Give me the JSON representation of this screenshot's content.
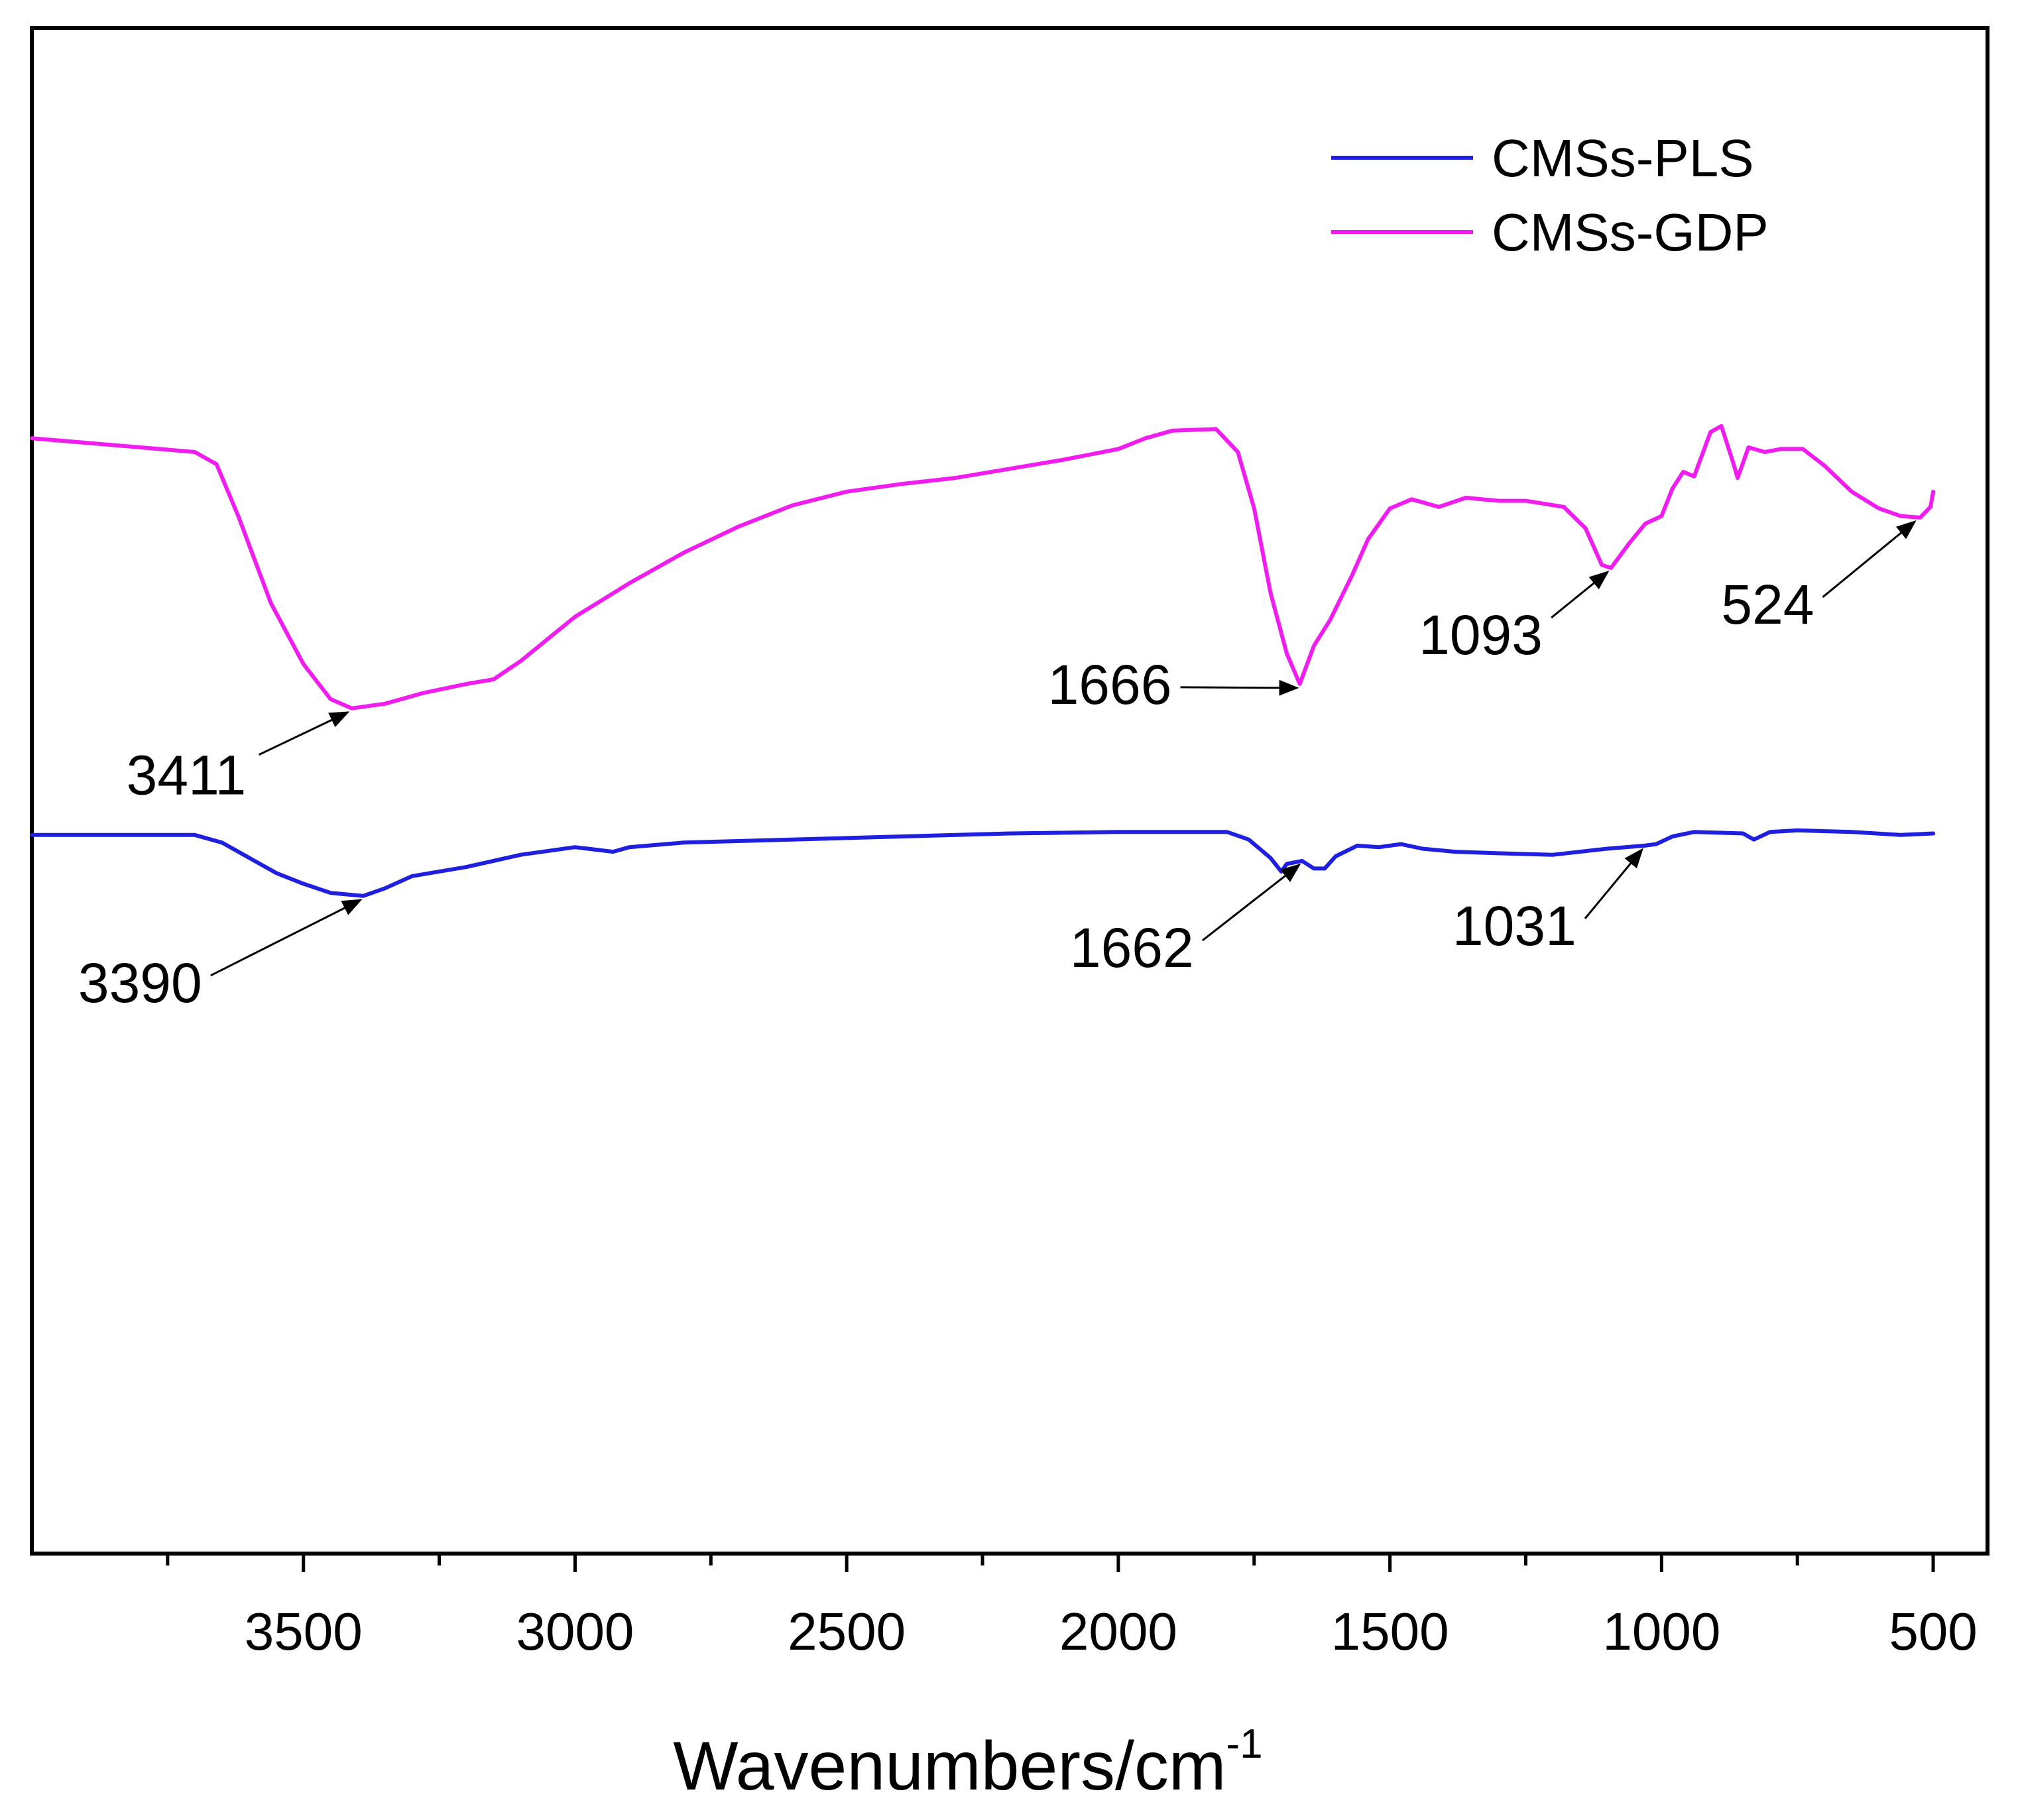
{
  "chart_data": {
    "type": "line",
    "title": "",
    "xlabel": "Wavenumbers/cm",
    "xlabel_superscript": "-1",
    "ylabel": "",
    "xlim": [
      4000,
      400
    ],
    "ylim": [
      0,
      100
    ],
    "x_reversed": true,
    "x_ticks": [
      3500,
      3000,
      2500,
      2000,
      1500,
      1000,
      500
    ],
    "x_minor_ticks": [
      3750,
      3250,
      2750,
      2250,
      1750,
      1250,
      750
    ],
    "grid": false,
    "legend_position": "top-right",
    "series": [
      {
        "name": "CMSs-PLS",
        "color": "#1f1fe0",
        "points": [
          [
            4000,
            47.1
          ],
          [
            3700,
            47.1
          ],
          [
            3650,
            46.6
          ],
          [
            3600,
            45.6
          ],
          [
            3550,
            44.6
          ],
          [
            3500,
            43.9
          ],
          [
            3450,
            43.3
          ],
          [
            3390,
            43.1
          ],
          [
            3350,
            43.6
          ],
          [
            3300,
            44.4
          ],
          [
            3200,
            45.0
          ],
          [
            3100,
            45.8
          ],
          [
            3000,
            46.3
          ],
          [
            2930,
            46.0
          ],
          [
            2900,
            46.3
          ],
          [
            2800,
            46.6
          ],
          [
            2500,
            46.9
          ],
          [
            2200,
            47.2
          ],
          [
            2000,
            47.3
          ],
          [
            1800,
            47.3
          ],
          [
            1760,
            46.8
          ],
          [
            1720,
            45.6
          ],
          [
            1700,
            44.7
          ],
          [
            1690,
            45.2
          ],
          [
            1662,
            45.4
          ],
          [
            1640,
            44.9
          ],
          [
            1620,
            44.9
          ],
          [
            1600,
            45.7
          ],
          [
            1560,
            46.4
          ],
          [
            1520,
            46.3
          ],
          [
            1480,
            46.5
          ],
          [
            1440,
            46.2
          ],
          [
            1380,
            46.0
          ],
          [
            1300,
            45.9
          ],
          [
            1200,
            45.8
          ],
          [
            1100,
            46.2
          ],
          [
            1031,
            46.4
          ],
          [
            1010,
            46.5
          ],
          [
            980,
            47.0
          ],
          [
            940,
            47.3
          ],
          [
            850,
            47.2
          ],
          [
            830,
            46.8
          ],
          [
            800,
            47.3
          ],
          [
            750,
            47.4
          ],
          [
            650,
            47.3
          ],
          [
            560,
            47.1
          ],
          [
            500,
            47.2
          ]
        ]
      },
      {
        "name": "CMSs-GDP",
        "color": "#f01cf0",
        "points": [
          [
            4000,
            73.1
          ],
          [
            3800,
            72.5
          ],
          [
            3700,
            72.2
          ],
          [
            3660,
            71.4
          ],
          [
            3620,
            68.0
          ],
          [
            3560,
            62.3
          ],
          [
            3500,
            58.3
          ],
          [
            3450,
            56.0
          ],
          [
            3411,
            55.4
          ],
          [
            3350,
            55.7
          ],
          [
            3280,
            56.4
          ],
          [
            3200,
            57.0
          ],
          [
            3150,
            57.3
          ],
          [
            3100,
            58.5
          ],
          [
            3000,
            61.4
          ],
          [
            2900,
            63.6
          ],
          [
            2800,
            65.6
          ],
          [
            2700,
            67.3
          ],
          [
            2600,
            68.7
          ],
          [
            2500,
            69.6
          ],
          [
            2400,
            70.1
          ],
          [
            2300,
            70.5
          ],
          [
            2200,
            71.1
          ],
          [
            2100,
            71.7
          ],
          [
            2000,
            72.4
          ],
          [
            1950,
            73.1
          ],
          [
            1900,
            73.6
          ],
          [
            1820,
            73.7
          ],
          [
            1780,
            72.2
          ],
          [
            1750,
            68.5
          ],
          [
            1720,
            63.0
          ],
          [
            1690,
            59.0
          ],
          [
            1666,
            57.0
          ],
          [
            1640,
            59.5
          ],
          [
            1610,
            61.2
          ],
          [
            1570,
            64.1
          ],
          [
            1540,
            66.5
          ],
          [
            1500,
            68.5
          ],
          [
            1460,
            69.1
          ],
          [
            1410,
            68.6
          ],
          [
            1360,
            69.2
          ],
          [
            1300,
            69.0
          ],
          [
            1250,
            69.0
          ],
          [
            1180,
            68.6
          ],
          [
            1140,
            67.2
          ],
          [
            1110,
            64.8
          ],
          [
            1093,
            64.6
          ],
          [
            1060,
            66.2
          ],
          [
            1030,
            67.5
          ],
          [
            1000,
            68.0
          ],
          [
            980,
            69.8
          ],
          [
            960,
            70.9
          ],
          [
            940,
            70.6
          ],
          [
            910,
            73.5
          ],
          [
            890,
            73.9
          ],
          [
            870,
            71.7
          ],
          [
            860,
            70.5
          ],
          [
            840,
            72.5
          ],
          [
            810,
            72.2
          ],
          [
            780,
            72.4
          ],
          [
            740,
            72.4
          ],
          [
            700,
            71.3
          ],
          [
            650,
            69.6
          ],
          [
            600,
            68.5
          ],
          [
            560,
            68.0
          ],
          [
            524,
            67.9
          ],
          [
            505,
            68.6
          ],
          [
            500,
            69.6
          ]
        ]
      }
    ],
    "annotations": [
      {
        "series": "CMSs-PLS",
        "label": "3390",
        "x": 3390
      },
      {
        "series": "CMSs-PLS",
        "label": "1662",
        "x": 1662
      },
      {
        "series": "CMSs-PLS",
        "label": "1031",
        "x": 1031
      },
      {
        "series": "CMSs-GDP",
        "label": "3411",
        "x": 3411
      },
      {
        "series": "CMSs-GDP",
        "label": "1666",
        "x": 1666
      },
      {
        "series": "CMSs-GDP",
        "label": "1093",
        "x": 1093
      },
      {
        "series": "CMSs-GDP",
        "label": "524",
        "x": 524
      }
    ]
  }
}
